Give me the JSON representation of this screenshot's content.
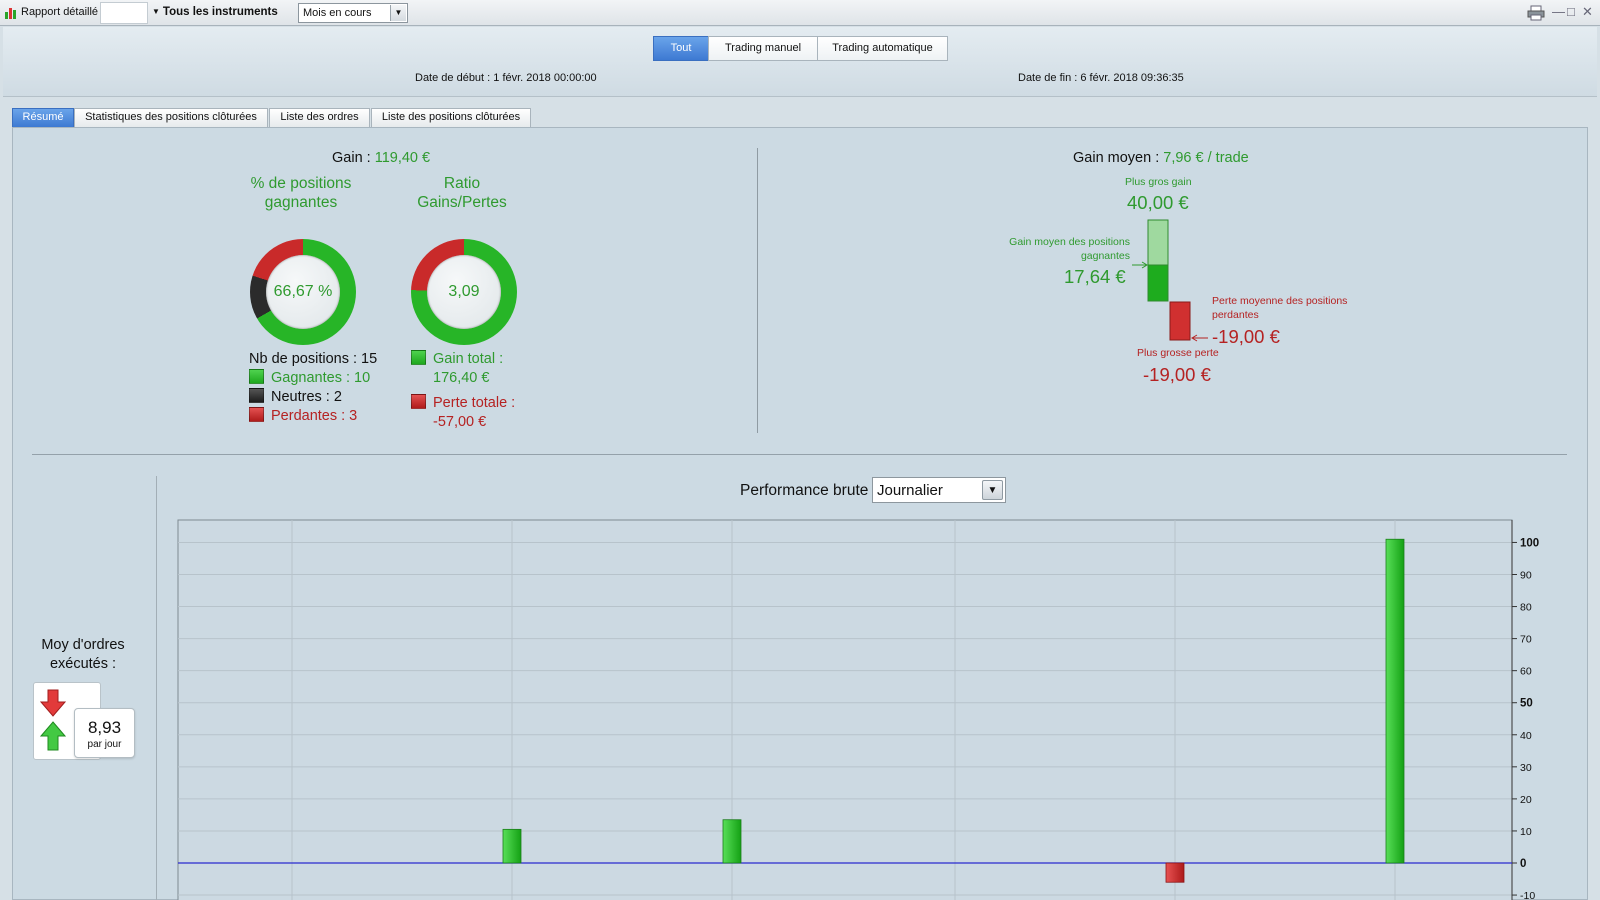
{
  "toolbar": {
    "report_label": "Rapport détaillé",
    "instruments_label": "Tous les instruments",
    "period_value": "Mois en cours",
    "print_icon": "printer-icon",
    "window_controls": [
      "—",
      "□",
      "✕"
    ]
  },
  "header": {
    "segments": [
      {
        "label": "Tout",
        "active": true
      },
      {
        "label": "Trading manuel",
        "active": false
      },
      {
        "label": "Trading automatique",
        "active": false
      }
    ],
    "start_date": "Date de début :  1 févr. 2018 00:00:00",
    "end_date": "Date de fin :  6 févr. 2018 09:36:35"
  },
  "tabs": [
    {
      "label": "Résumé",
      "active": true
    },
    {
      "label": "Statistiques des positions clôturées",
      "active": false
    },
    {
      "label": "Liste des ordres",
      "active": false
    },
    {
      "label": "Liste des positions clôturées",
      "active": false
    }
  ],
  "summary": {
    "gain_label": "Gain : ",
    "gain_value": "119,40 €",
    "winning_pct": {
      "title": "% de positions gagnantes",
      "value": "66,67 %",
      "fraction": 0.6667
    },
    "ratio": {
      "title": "Ratio Gains/Pertes",
      "value": "3,09"
    },
    "positions_count": "Nb de positions : 15",
    "winning": "Gagnantes : 10",
    "neutral": "Neutres : 2",
    "losing": "Perdantes : 3",
    "total_gain_label": "Gain total :",
    "total_gain_value": "176,40 €",
    "total_loss_label": "Perte totale :",
    "total_loss_value": "-57,00 €",
    "avg_gain_label": "Gain moyen : ",
    "avg_gain_value": "7,96 € / trade",
    "biggest_gain_label": "Plus gros gain",
    "biggest_gain_value": "40,00 €",
    "avg_win_label": "Gain moyen des positions gagnantes",
    "avg_win_value": "17,64 €",
    "avg_loss_label": "Perte moyenne des positions perdantes",
    "avg_loss_value": "-19,00 €",
    "biggest_loss_label": "Plus grosse perte",
    "biggest_loss_value": "-19,00 €"
  },
  "orders": {
    "title": "Moy d'ordres exécutés :",
    "value": "8,93",
    "unit": "par jour"
  },
  "performance": {
    "label": "Performance brute",
    "period": "Journalier"
  },
  "colors": {
    "gain": "#2f9a2f",
    "loss": "#b52222",
    "neutral": "#222222",
    "accent": "#3d79d2",
    "zero_line": "#2a2ad0"
  },
  "chart_data": {
    "type": "bar",
    "y_ticks": [
      -10,
      0,
      10,
      20,
      30,
      40,
      50,
      60,
      70,
      80,
      90,
      100
    ],
    "ylim": [
      -12,
      107
    ],
    "x": [
      1,
      2,
      3,
      4,
      5
    ],
    "values": [
      10.5,
      13.5,
      0,
      -6,
      101
    ],
    "grid": true
  }
}
